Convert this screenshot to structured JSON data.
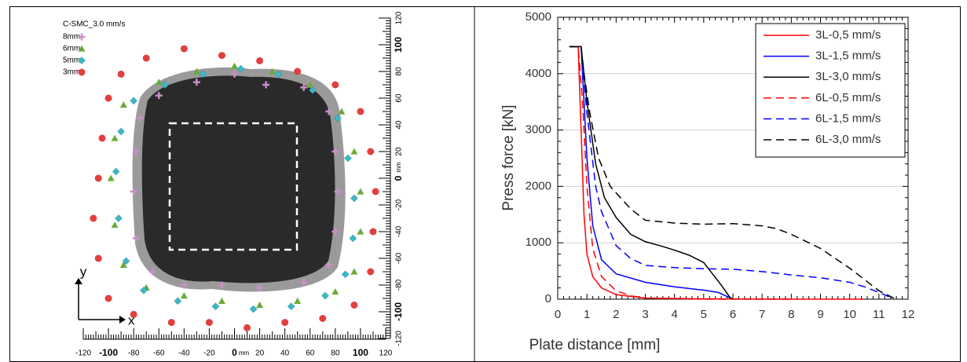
{
  "chart_data": [
    {
      "type": "scatter",
      "title": "C-SMC_3.0 mm/s",
      "xlabel": "x",
      "ylabel": "y",
      "xunit": "mm",
      "yunit": "mm",
      "xlim": [
        -120,
        120
      ],
      "ylim": [
        -120,
        120
      ],
      "xticks": [
        -120,
        -100,
        -80,
        -60,
        -40,
        -20,
        0,
        20,
        40,
        60,
        80,
        100,
        120
      ],
      "yticks": [
        -120,
        -100,
        -80,
        -60,
        -40,
        -20,
        0,
        20,
        40,
        60,
        80,
        100,
        120
      ],
      "series": [
        {
          "name": "8mm",
          "color": "#c890c8",
          "marker": "plus",
          "x": [
            -60,
            -30,
            0,
            25,
            55,
            75,
            80,
            82,
            80,
            75,
            55,
            20,
            -10,
            -40,
            -65,
            -78,
            -80,
            -78,
            -75
          ],
          "y": [
            62,
            72,
            78,
            70,
            68,
            50,
            20,
            -10,
            -40,
            -65,
            -78,
            -82,
            -80,
            -80,
            -70,
            -45,
            -10,
            20,
            45
          ]
        },
        {
          "name": "6mm",
          "color": "#6aaa3a",
          "marker": "triangle",
          "x": [
            -60,
            -30,
            0,
            30,
            60,
            85,
            95,
            100,
            100,
            95,
            80,
            50,
            20,
            -10,
            -40,
            -70,
            -88,
            -95,
            -98,
            -95,
            -88
          ],
          "y": [
            72,
            80,
            84,
            80,
            70,
            50,
            20,
            -10,
            -40,
            -70,
            -85,
            -92,
            -95,
            -92,
            -88,
            -82,
            -65,
            -35,
            0,
            30,
            55
          ]
        },
        {
          "name": "5mm",
          "color": "#3bb8c8",
          "marker": "diamond",
          "x": [
            -55,
            -25,
            5,
            35,
            62,
            82,
            90,
            95,
            94,
            88,
            72,
            45,
            15,
            -15,
            -45,
            -72,
            -86,
            -92,
            -94,
            -90,
            -80
          ],
          "y": [
            70,
            78,
            82,
            78,
            66,
            45,
            15,
            -15,
            -45,
            -72,
            -88,
            -96,
            -98,
            -96,
            -92,
            -84,
            -62,
            -30,
            5,
            35,
            58
          ]
        },
        {
          "name": "3mm",
          "color": "#e04040",
          "marker": "circle",
          "x": [
            -40,
            -10,
            20,
            50,
            80,
            100,
            108,
            112,
            110,
            108,
            95,
            70,
            40,
            10,
            -20,
            -50,
            -80,
            -100,
            -108,
            -112,
            -108,
            -105,
            -100,
            -90,
            -70
          ],
          "y": [
            97,
            92,
            88,
            80,
            70,
            50,
            20,
            -10,
            -40,
            -70,
            -95,
            -105,
            -108,
            -112,
            -108,
            -108,
            -102,
            -90,
            -60,
            -30,
            0,
            30,
            60,
            78,
            90
          ]
        }
      ]
    },
    {
      "type": "line",
      "xlabel": "Plate distance [mm]",
      "ylabel": "Press force [kN]",
      "xlim": [
        0,
        12
      ],
      "ylim": [
        0,
        5000
      ],
      "xticks": [
        0,
        1,
        2,
        3,
        4,
        5,
        6,
        7,
        8,
        9,
        10,
        11,
        12
      ],
      "yticks": [
        0,
        1000,
        2000,
        3000,
        4000,
        5000
      ],
      "grid": "y",
      "series": [
        {
          "name": "3L-0,5 mm/s",
          "color": "#ff0000",
          "dash": false,
          "x": [
            0.4,
            0.7,
            0.8,
            0.9,
            1.0,
            1.2,
            1.5,
            2,
            3,
            5,
            8,
            10.5
          ],
          "values": [
            4480,
            4480,
            3000,
            1500,
            800,
            400,
            200,
            80,
            20,
            5,
            0,
            0
          ]
        },
        {
          "name": "3L-1,5 mm/s",
          "color": "#0000ff",
          "dash": false,
          "x": [
            0.4,
            0.8,
            0.9,
            1.0,
            1.2,
            1.5,
            2,
            3,
            4,
            5,
            5.5,
            6
          ],
          "values": [
            4480,
            4480,
            3500,
            2500,
            1300,
            700,
            450,
            300,
            220,
            160,
            120,
            0
          ]
        },
        {
          "name": "3L-3,0 mm/s",
          "color": "#000000",
          "dash": false,
          "x": [
            0.4,
            0.8,
            1.0,
            1.3,
            1.6,
            2,
            2.5,
            3,
            3.5,
            4,
            4.5,
            5,
            5.3,
            5.6,
            5.9,
            6
          ],
          "values": [
            4480,
            4480,
            3500,
            2400,
            1800,
            1450,
            1150,
            1020,
            950,
            870,
            780,
            650,
            450,
            250,
            30,
            0
          ]
        },
        {
          "name": "6L-0,5 mm/s",
          "color": "#ff0000",
          "dash": true,
          "x": [
            0.4,
            0.7,
            0.85,
            1,
            1.2,
            1.5,
            2,
            2.5,
            3,
            5,
            8
          ],
          "values": [
            4480,
            4480,
            3500,
            2000,
            900,
            400,
            150,
            60,
            20,
            0,
            0
          ]
        },
        {
          "name": "6L-1,5 mm/s",
          "color": "#0000ff",
          "dash": true,
          "x": [
            0.4,
            0.8,
            1.0,
            1.3,
            1.5,
            2,
            2.5,
            3,
            4,
            5,
            6,
            7,
            8,
            9,
            10,
            10.5,
            11,
            11.4
          ],
          "values": [
            4480,
            4480,
            3300,
            2000,
            1550,
            950,
            720,
            600,
            560,
            540,
            530,
            490,
            430,
            380,
            300,
            220,
            120,
            30
          ]
        },
        {
          "name": "6L-3,0 mm/s",
          "color": "#000000",
          "dash": true,
          "x": [
            0.4,
            0.8,
            0.9,
            1.1,
            1.4,
            1.8,
            2.5,
            3,
            4,
            5,
            6,
            7,
            7.5,
            8,
            9,
            10,
            10.5,
            11,
            11.5,
            11.6
          ],
          "values": [
            4480,
            4480,
            4000,
            3300,
            2500,
            2000,
            1600,
            1400,
            1350,
            1330,
            1340,
            1300,
            1250,
            1150,
            900,
            550,
            350,
            150,
            20,
            0
          ]
        }
      ]
    }
  ]
}
